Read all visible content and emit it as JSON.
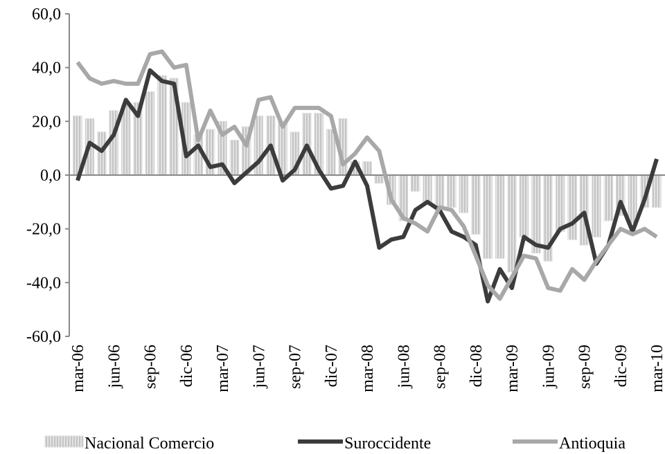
{
  "chart_data": {
    "type": "combo",
    "categories": [
      "mar-06",
      null,
      null,
      "jun-06",
      null,
      null,
      "sep-06",
      null,
      null,
      "dic-06",
      null,
      null,
      "mar-07",
      null,
      null,
      "jun-07",
      null,
      null,
      "sep-07",
      null,
      null,
      "dic-07",
      null,
      null,
      "mar-08",
      null,
      null,
      "jun-08",
      null,
      null,
      "sep-08",
      null,
      null,
      "dic-08",
      null,
      null,
      "mar-09",
      null,
      null,
      "jun-09",
      null,
      null,
      "sep-09",
      null,
      null,
      "dic-09",
      null,
      null,
      "mar-10"
    ],
    "series": [
      {
        "name": "Nacional Comercio",
        "type": "bar",
        "color": "#c4c4c4",
        "values": [
          22,
          21,
          16,
          24,
          26,
          27,
          31,
          37,
          36,
          27,
          15,
          17,
          20,
          13,
          18,
          22,
          22,
          20,
          16,
          23,
          23,
          17,
          21,
          5,
          5,
          -3,
          -11,
          -17,
          -6,
          -10,
          -12,
          -12,
          -14,
          -22,
          -31,
          -31,
          -36,
          -23,
          -29,
          -32,
          -21,
          -24,
          -26,
          -23,
          -17,
          -15,
          -18,
          -12,
          -12
        ]
      },
      {
        "name": "Suroccidente",
        "type": "line",
        "color": "#3c3c3c",
        "values": [
          -2,
          12,
          9,
          15,
          28,
          22,
          39,
          35,
          34,
          7,
          11,
          3,
          4,
          -3,
          1,
          5,
          11,
          -2,
          2,
          11,
          2,
          -5,
          -4,
          5,
          -4,
          -27,
          -24,
          -23,
          -13,
          -10,
          -13,
          -21,
          -23,
          -26,
          -47,
          -35,
          -42,
          -23,
          -26,
          -27,
          -20,
          -18,
          -14,
          -33,
          -26,
          -10,
          -21,
          -9,
          6
        ]
      },
      {
        "name": "Antioquia",
        "type": "line",
        "color": "#a8a8a8",
        "values": [
          42,
          36,
          34,
          35,
          34,
          34,
          45,
          46,
          40,
          41,
          13,
          24,
          15,
          18,
          11,
          28,
          29,
          18,
          25,
          25,
          25,
          22,
          4,
          8,
          14,
          9,
          -9,
          -16,
          -18,
          -21,
          -12,
          -13,
          -19,
          -30,
          -41,
          -46,
          -38,
          -30,
          -31,
          -42,
          -43,
          -35,
          -39,
          -32,
          -26,
          -20,
          -22,
          -20,
          -23
        ]
      }
    ],
    "ylim": [
      -60,
      60
    ],
    "yticks": [
      {
        "value": -60,
        "label": "-60,0"
      },
      {
        "value": -40,
        "label": "-40,0"
      },
      {
        "value": -20,
        "label": "-20,0"
      },
      {
        "value": 0,
        "label": "0,0"
      },
      {
        "value": 20,
        "label": "20,0"
      },
      {
        "value": 40,
        "label": "40,0"
      },
      {
        "value": 60,
        "label": "60,0"
      }
    ],
    "grid": false,
    "legend": "bottom"
  }
}
